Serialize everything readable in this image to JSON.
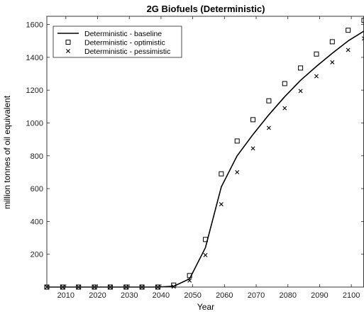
{
  "chart_data": {
    "type": "line",
    "title": "2G Biofuels (Deterministic)",
    "xlabel": "Year",
    "ylabel": "million tonnes of oil equivalent",
    "xlim": [
      2004,
      2104
    ],
    "ylim": [
      0,
      1650
    ],
    "xticks": [
      2010,
      2020,
      2030,
      2040,
      2050,
      2060,
      2070,
      2080,
      2090,
      2100
    ],
    "yticks": [
      200,
      400,
      600,
      800,
      1000,
      1200,
      1400,
      1600
    ],
    "grid": false,
    "legend_position": "top-left",
    "series": [
      {
        "name": "Deterministic - baseline",
        "style": "line",
        "color": "#000000",
        "x": [
          2004,
          2009,
          2014,
          2019,
          2024,
          2029,
          2034,
          2039,
          2044,
          2049,
          2054,
          2059,
          2064,
          2069,
          2074,
          2079,
          2084,
          2089,
          2094,
          2099,
          2104
        ],
        "y": [
          0,
          0,
          0,
          0,
          0,
          0,
          0,
          0,
          5,
          50,
          240,
          610,
          800,
          930,
          1050,
          1160,
          1260,
          1345,
          1425,
          1500,
          1560
        ]
      },
      {
        "name": "Deterministic - optimistic",
        "style": "marker-square",
        "color": "#000000",
        "x": [
          2004,
          2009,
          2014,
          2019,
          2024,
          2029,
          2034,
          2039,
          2044,
          2049,
          2054,
          2059,
          2064,
          2069,
          2074,
          2079,
          2084,
          2089,
          2094,
          2099,
          2104
        ],
        "y": [
          0,
          0,
          0,
          0,
          0,
          0,
          0,
          0,
          12,
          70,
          290,
          690,
          890,
          1020,
          1135,
          1240,
          1335,
          1420,
          1495,
          1565,
          1625
        ]
      },
      {
        "name": "Deterministic - pessimistic",
        "style": "marker-x",
        "color": "#000000",
        "x": [
          2004,
          2009,
          2014,
          2019,
          2024,
          2029,
          2034,
          2039,
          2044,
          2049,
          2054,
          2059,
          2064,
          2069,
          2074,
          2079,
          2084,
          2089,
          2094,
          2099,
          2104
        ],
        "y": [
          0,
          0,
          0,
          0,
          0,
          0,
          0,
          0,
          3,
          40,
          195,
          505,
          700,
          845,
          970,
          1090,
          1195,
          1285,
          1370,
          1445,
          1515
        ]
      }
    ]
  }
}
